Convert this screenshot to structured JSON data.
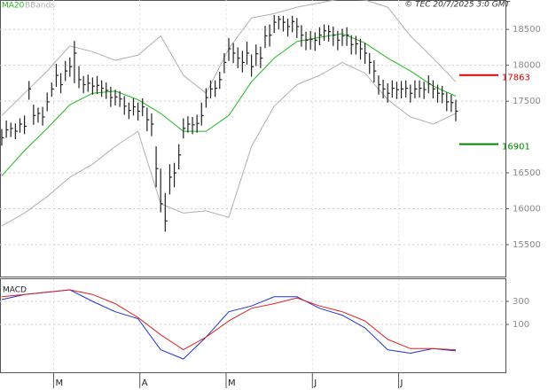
{
  "chart_data": [
    {
      "type": "ohlc",
      "watermark": "© TEC 20/7/2025 3:0 GMT",
      "color": "#222222",
      "categories": [
        null,
        null,
        null,
        null,
        null,
        null,
        null,
        null,
        null,
        null,
        null,
        null,
        "M",
        null,
        null,
        null,
        null,
        null,
        null,
        null,
        null,
        null,
        null,
        null,
        null,
        null,
        null,
        null,
        null,
        null,
        null,
        "A",
        null,
        null,
        null,
        null,
        null,
        null,
        null,
        null,
        null,
        null,
        null,
        null,
        null,
        null,
        null,
        null,
        null,
        null,
        "M",
        null,
        null,
        null,
        null,
        null,
        null,
        null,
        null,
        null,
        null,
        null,
        null,
        null,
        null,
        null,
        null,
        null,
        null,
        "J",
        null,
        null,
        null,
        null,
        null,
        null,
        null,
        null,
        null,
        null,
        null,
        null,
        null,
        null,
        null,
        null,
        null,
        null,
        "J",
        null,
        null,
        null,
        null,
        null,
        null,
        null,
        null,
        null,
        null,
        null,
        null
      ],
      "close": [
        16990,
        17100,
        17120,
        17080,
        17180,
        17150,
        17670,
        17300,
        17330,
        17280,
        17490,
        17670,
        17860,
        17730,
        17920,
        17980,
        18170,
        17800,
        17730,
        17750,
        17710,
        17720,
        17680,
        17650,
        17550,
        17560,
        17530,
        17430,
        17370,
        17420,
        17360,
        17420,
        17240,
        17180,
        16560,
        16070,
        15830,
        16440,
        16500,
        16750,
        17120,
        17180,
        17170,
        17190,
        17300,
        17550,
        17670,
        17680,
        17800,
        18040,
        18230,
        18170,
        18100,
        18040,
        18170,
        17980,
        18160,
        18100,
        18410,
        18420,
        18600,
        18640,
        18600,
        18540,
        18610,
        18540,
        18420,
        18350,
        18360,
        18350,
        18420,
        18480,
        18470,
        18420,
        18350,
        18410,
        18420,
        18290,
        18300,
        18230,
        18170,
        18040,
        17920,
        17730,
        17670,
        17610,
        17680,
        17660,
        17670,
        17680,
        17610,
        17670,
        17680,
        17660,
        17740,
        17670,
        17610,
        17600,
        17490,
        17480,
        17360
      ],
      "high": [
        17110,
        17230,
        17200,
        17190,
        17260,
        17300,
        17780,
        17450,
        17410,
        17420,
        17620,
        17760,
        18020,
        17890,
        18060,
        18110,
        18340,
        17990,
        17850,
        17870,
        17830,
        17850,
        17790,
        17760,
        17700,
        17660,
        17640,
        17570,
        17480,
        17540,
        17480,
        17540,
        17410,
        17330,
        16870,
        16560,
        16220,
        16620,
        16640,
        16900,
        17260,
        17290,
        17280,
        17310,
        17480,
        17680,
        17790,
        17790,
        17910,
        18170,
        18380,
        18310,
        18250,
        18200,
        18330,
        18150,
        18290,
        18260,
        18550,
        18570,
        18700,
        18690,
        18690,
        18650,
        18690,
        18660,
        18560,
        18470,
        18480,
        18460,
        18530,
        18570,
        18560,
        18540,
        18480,
        18510,
        18530,
        18420,
        18410,
        18370,
        18310,
        18170,
        18070,
        17860,
        17800,
        17750,
        17790,
        17770,
        17780,
        17790,
        17730,
        17790,
        17790,
        17770,
        17860,
        17790,
        17730,
        17710,
        17620,
        17590,
        17520
      ],
      "low": [
        16880,
        16990,
        17000,
        16970,
        17060,
        17040,
        17520,
        17170,
        17200,
        17160,
        17360,
        17560,
        17700,
        17610,
        17780,
        17840,
        17750,
        17680,
        17610,
        17630,
        17590,
        17600,
        17560,
        17530,
        17420,
        17440,
        17420,
        17310,
        17250,
        17300,
        17230,
        17290,
        17080,
        17010,
        16300,
        15950,
        15680,
        16200,
        16300,
        16550,
        16980,
        17060,
        17040,
        17060,
        17160,
        17410,
        17540,
        17560,
        17670,
        17890,
        18060,
        18030,
        17960,
        17900,
        18010,
        17840,
        17990,
        17960,
        18240,
        18260,
        18450,
        18500,
        18470,
        18400,
        18460,
        18380,
        18260,
        18210,
        18220,
        18200,
        18280,
        18340,
        18330,
        18270,
        18210,
        18270,
        18270,
        18150,
        18150,
        18080,
        18020,
        17880,
        17760,
        17590,
        17540,
        17480,
        17550,
        17530,
        17540,
        17550,
        17480,
        17540,
        17550,
        17530,
        17610,
        17540,
        17480,
        17470,
        17360,
        17350,
        17220
      ],
      "series": [
        {
          "name": "MA20",
          "color": "#22b822",
          "x": [
            0,
            5,
            10,
            15,
            20,
            25,
            30,
            35,
            40,
            45,
            50,
            55,
            60,
            65,
            70,
            75,
            80,
            85,
            90,
            95,
            100
          ],
          "values": [
            16460,
            16810,
            17120,
            17450,
            17610,
            17640,
            17520,
            17330,
            17080,
            17080,
            17300,
            17770,
            18100,
            18330,
            18390,
            18440,
            18310,
            18100,
            17920,
            17710,
            17570
          ]
        },
        {
          "name": "BBands",
          "color": "#b0b0b0",
          "x": [
            0,
            5,
            10,
            15,
            20,
            25,
            30,
            35,
            40,
            45,
            50,
            55,
            60,
            65,
            70,
            75,
            80,
            85,
            90,
            95,
            100
          ],
          "upper": [
            17300,
            17610,
            17920,
            18270,
            18190,
            18070,
            18140,
            18410,
            17860,
            17610,
            18230,
            18660,
            18720,
            18810,
            18870,
            18930,
            18910,
            18810,
            18410,
            18100,
            17770
          ],
          "lower": [
            15760,
            15940,
            16170,
            16440,
            16620,
            16870,
            17080,
            16070,
            15940,
            15970,
            15880,
            16870,
            17430,
            17730,
            17860,
            18040,
            17890,
            17520,
            17280,
            17180,
            17330
          ]
        }
      ],
      "levels": [
        {
          "value": 17863,
          "color": "#dd0000"
        },
        {
          "value": 16901,
          "color": "#008800"
        }
      ],
      "ylim": [
        15055,
        18910
      ],
      "yticks": [
        15500,
        16000,
        16500,
        17500,
        18000,
        18500
      ],
      "grid": true
    },
    {
      "type": "line",
      "title": "MACD",
      "series": [
        {
          "name": "MACD",
          "color": "#2233cc",
          "x": [
            0,
            5,
            10,
            15,
            20,
            25,
            30,
            35,
            40,
            45,
            50,
            55,
            60,
            65,
            70,
            75,
            80,
            85,
            90,
            95,
            100
          ],
          "values": [
            315,
            360,
            380,
            400,
            300,
            210,
            150,
            -120,
            -200,
            -10,
            210,
            260,
            340,
            340,
            240,
            180,
            70,
            -120,
            -150,
            -110,
            -130
          ]
        },
        {
          "name": "Signal",
          "color": "#dd2222",
          "x": [
            0,
            5,
            10,
            15,
            20,
            25,
            30,
            35,
            40,
            45,
            50,
            55,
            60,
            65,
            70,
            75,
            80,
            85,
            90,
            95,
            100
          ],
          "values": [
            340,
            360,
            380,
            400,
            360,
            280,
            160,
            10,
            -120,
            -10,
            130,
            240,
            280,
            330,
            260,
            210,
            130,
            -30,
            -110,
            -110,
            -120
          ]
        }
      ],
      "ylim": [
        -315,
        492
      ],
      "yticks": [
        100,
        300
      ],
      "grid": true
    }
  ]
}
